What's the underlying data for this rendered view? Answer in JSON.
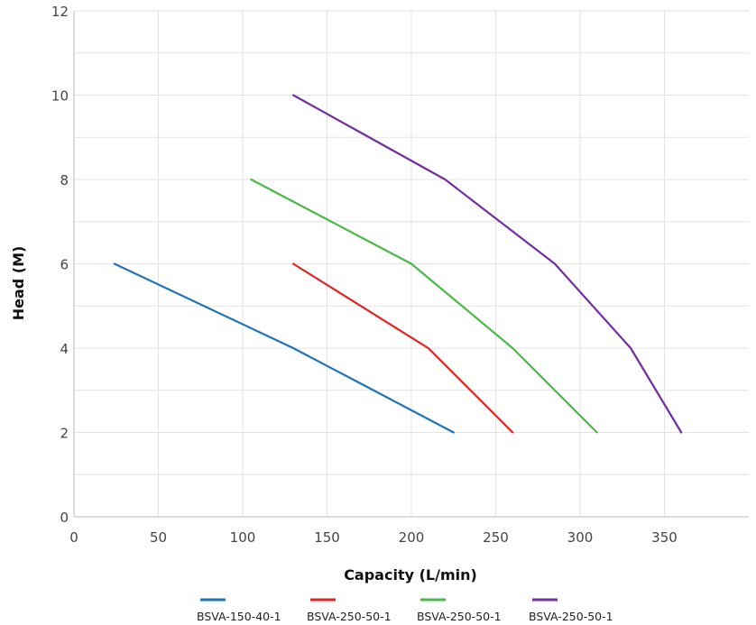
{
  "chart_data": {
    "type": "line",
    "title": "",
    "xlabel": "Capacity (L/min)",
    "ylabel": "Head (M)",
    "xlim": [
      0,
      400
    ],
    "ylim": [
      0,
      12
    ],
    "x_ticks": [
      0,
      50,
      100,
      150,
      200,
      250,
      300,
      350
    ],
    "y_ticks": [
      0,
      2,
      4,
      6,
      8,
      10,
      12
    ],
    "grid": true,
    "legend_position": "bottom",
    "series": [
      {
        "name": "BSVA-150-40-1",
        "color": "#1f73b7",
        "points": [
          [
            24,
            6
          ],
          [
            130,
            4
          ],
          [
            225,
            2
          ]
        ]
      },
      {
        "name": "BSVA-250-50-1",
        "color": "#e02424",
        "points": [
          [
            130,
            6
          ],
          [
            210,
            4
          ],
          [
            260,
            2
          ]
        ]
      },
      {
        "name": "BSVA-250-50-1",
        "color": "#4cb847",
        "points": [
          [
            105,
            8
          ],
          [
            200,
            6
          ],
          [
            260,
            4
          ],
          [
            310,
            2
          ]
        ]
      },
      {
        "name": "BSVA-250-50-1",
        "color": "#7030a0",
        "points": [
          [
            130,
            10
          ],
          [
            220,
            8
          ],
          [
            285,
            6
          ],
          [
            330,
            4
          ],
          [
            360,
            2
          ]
        ]
      }
    ]
  }
}
